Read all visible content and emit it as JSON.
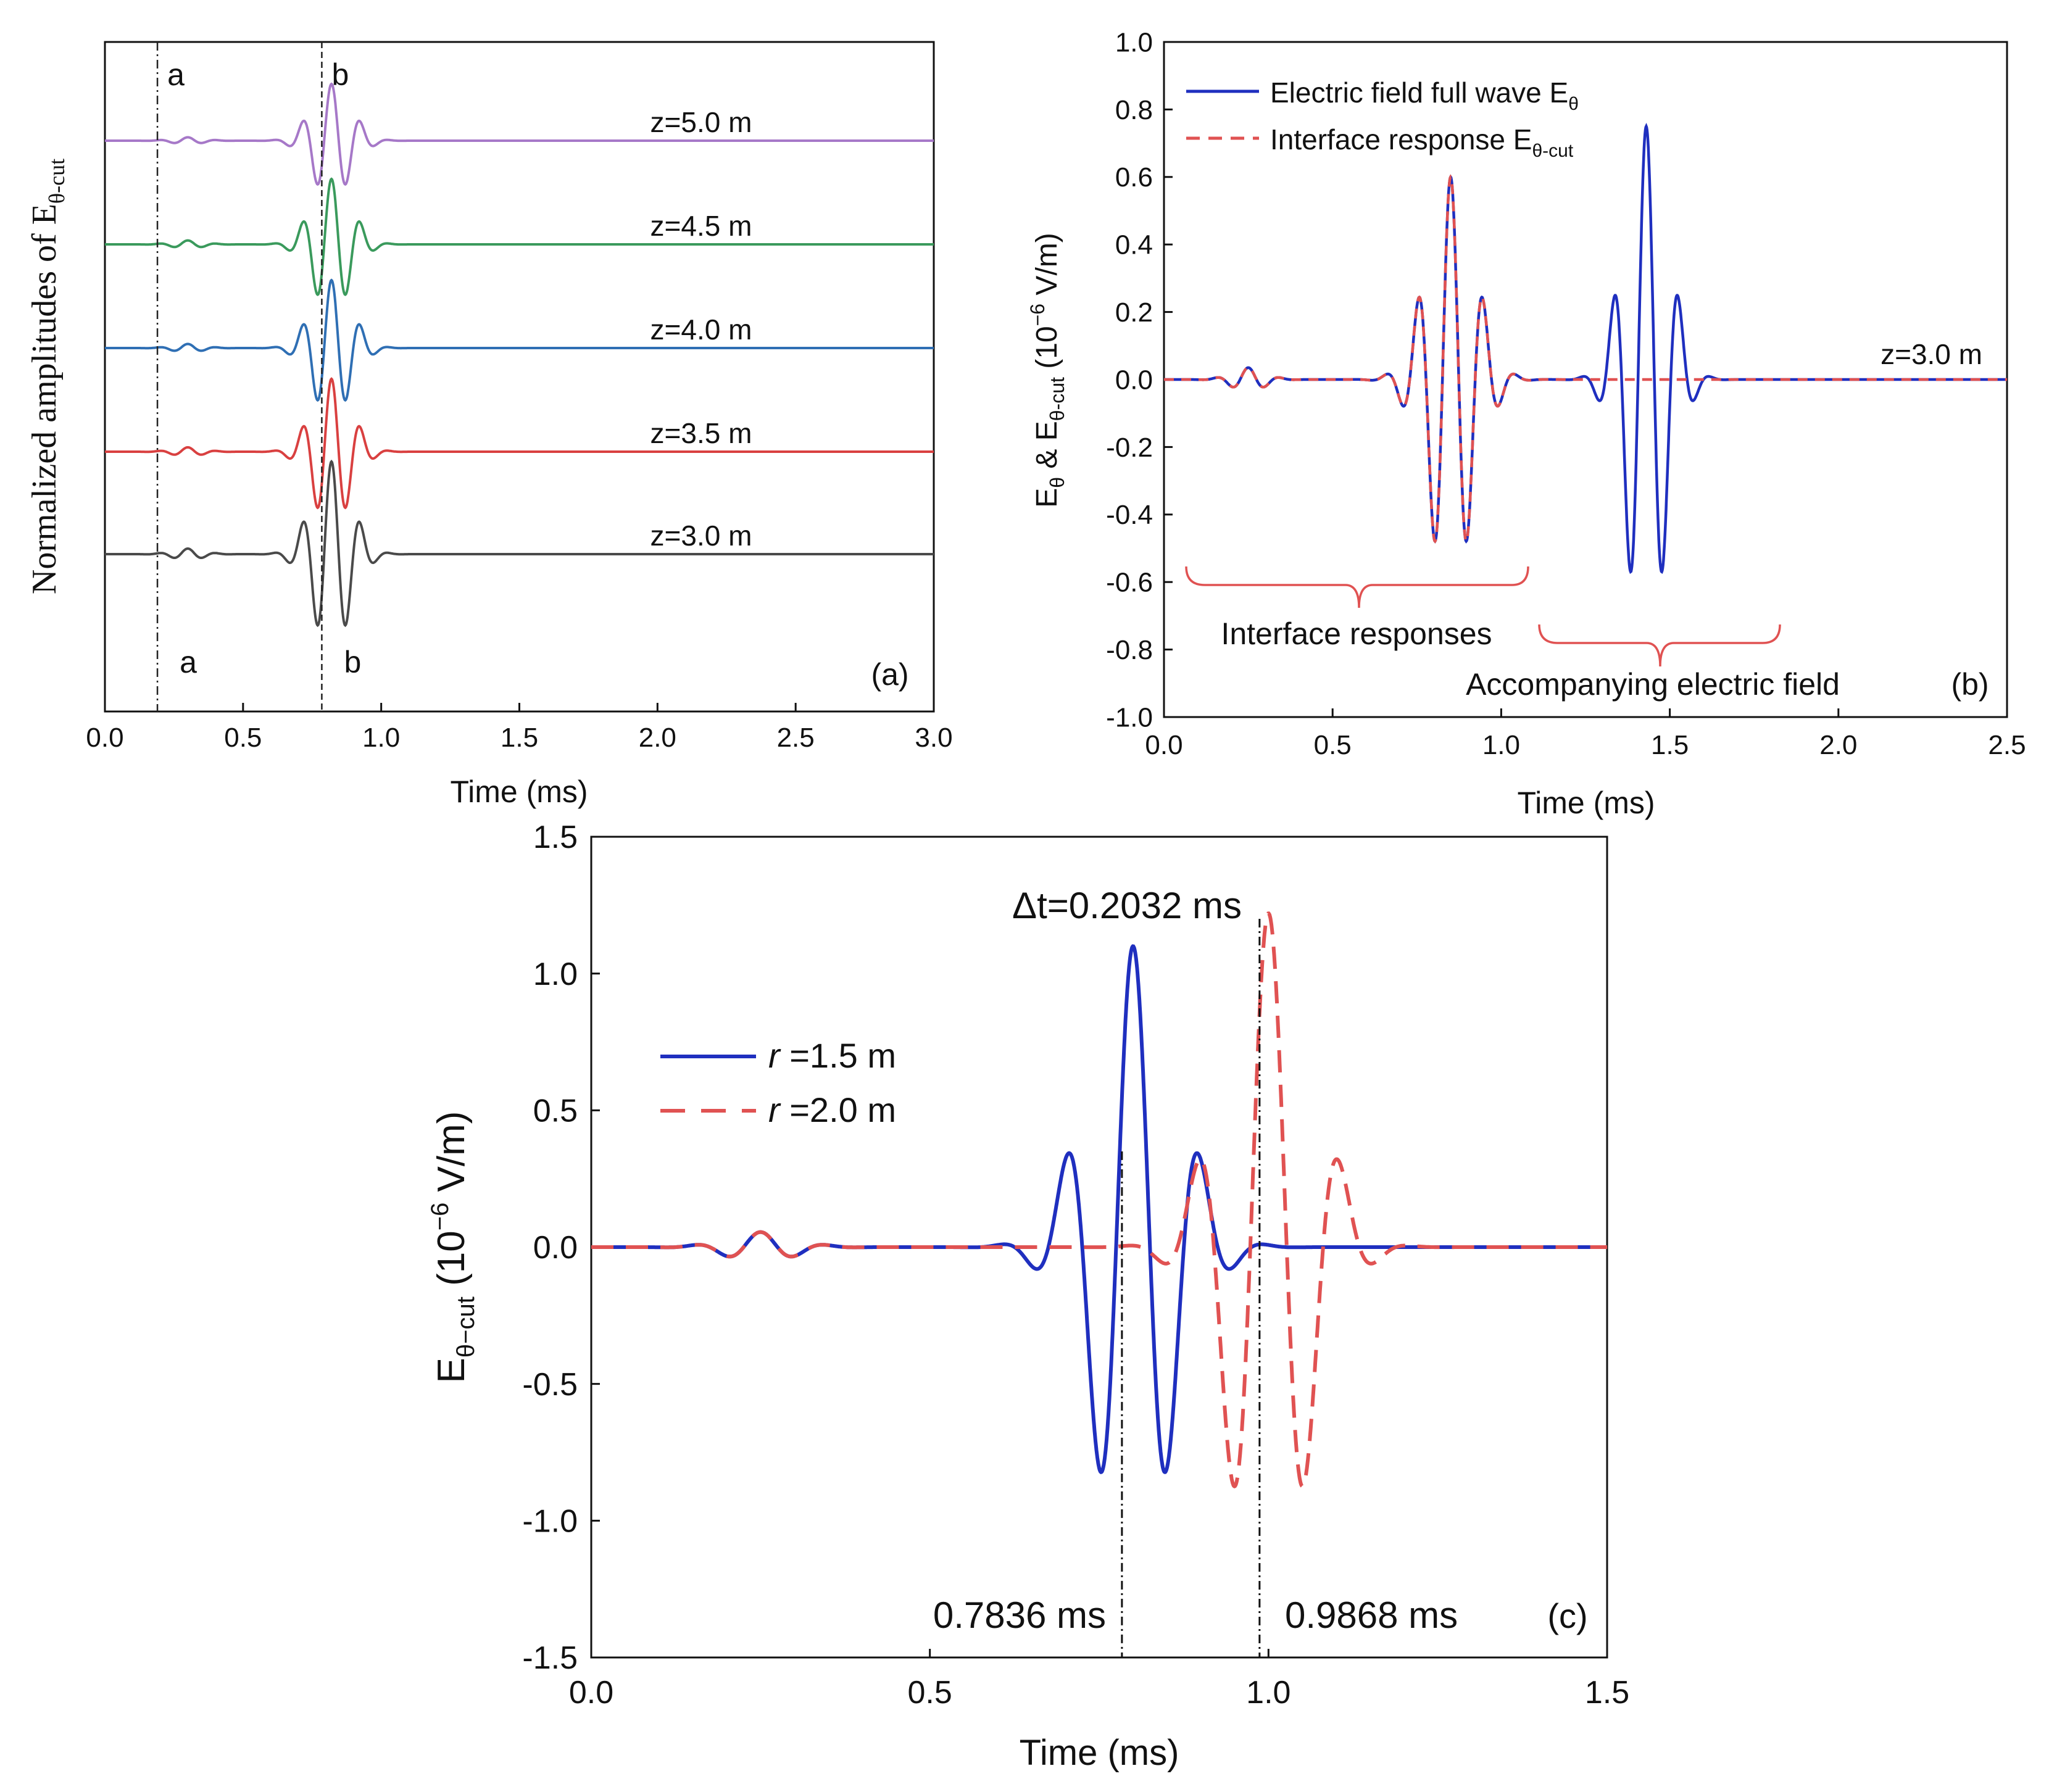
{
  "chart_data": [
    {
      "id": "a",
      "type": "line",
      "panel_label": "(a)",
      "xlabel": "Time (ms)",
      "ylabel_main": "Normalized  amplitudes  of  E",
      "ylabel_sub": "θ-cut",
      "xlim": [
        0.0,
        3.0
      ],
      "x_ticks": [
        "0.0",
        "0.5",
        "1.0",
        "1.5",
        "2.0",
        "2.5",
        "3.0"
      ],
      "markers": [
        {
          "label": "a",
          "time": 0.19
        },
        {
          "label": "b",
          "time": 0.785
        }
      ],
      "series": [
        {
          "name": "z=5.0 m",
          "color": "#a678c8",
          "end_time": 3.0
        },
        {
          "name": "z=4.5 m",
          "color": "#3a9a5c",
          "end_time": 3.0
        },
        {
          "name": "z=4.0 m",
          "color": "#2f6fb4",
          "end_time": 3.0
        },
        {
          "name": "z=3.5 m",
          "color": "#d94040",
          "end_time": 3.0
        },
        {
          "name": "z=3.0 m",
          "color": "#4a4a4a",
          "end_time": 3.0
        }
      ],
      "wave_shape": {
        "precursor_center_ms": 0.3,
        "precursor_amp": 0.06,
        "main_center_ms": 0.82,
        "main_width_ms": 0.1,
        "main_freq_khz": 9.5
      }
    },
    {
      "id": "b",
      "type": "line",
      "panel_label": "(b)",
      "xlabel": "Time (ms)",
      "ylabel_main": "E",
      "ylabel_sub1": "θ",
      "ylabel_mid": " & E",
      "ylabel_sub2": "θ-cut",
      "ylabel_unit_a": "  (10",
      "ylabel_sup": "−6",
      "ylabel_unit_b": " V/m)",
      "xlim": [
        0.0,
        2.5
      ],
      "ylim": [
        -1.0,
        1.0
      ],
      "x_ticks": [
        "0.0",
        "0.5",
        "1.0",
        "1.5",
        "2.0",
        "2.5"
      ],
      "y_ticks": [
        "1.0",
        "0.8",
        "0.6",
        "0.4",
        "0.2",
        "0.0",
        "-0.2",
        "-0.4",
        "-0.6",
        "-0.8",
        "-1.0"
      ],
      "legend": [
        {
          "text": "Electric field full wave E",
          "sub": "θ",
          "color": "#1f2fbf",
          "dash": false
        },
        {
          "text": "Interface response E",
          "sub": "θ-cut",
          "color": "#e05252",
          "dash": true
        }
      ],
      "annotations": {
        "z_label": "z=3.0 m",
        "interface": "Interface responses",
        "accompanying": "Accompanying electric field"
      },
      "series": [
        {
          "name": "Electric field full wave Eθ",
          "color": "#1f2fbf",
          "packets": [
            {
              "center_ms": 0.85,
              "width_ms": 0.1,
              "freq_khz": 10.3,
              "amp": 0.6
            },
            {
              "center_ms": 1.43,
              "width_ms": 0.09,
              "freq_khz": 10.3,
              "amp": 0.75
            },
            {
              "center_ms": 0.25,
              "width_ms": 0.07,
              "freq_khz": 10.3,
              "amp": 0.035
            }
          ]
        },
        {
          "name": "Interface response Eθ-cut",
          "color": "#e05252",
          "packets": [
            {
              "center_ms": 0.85,
              "width_ms": 0.1,
              "freq_khz": 10.3,
              "amp": 0.6
            },
            {
              "center_ms": 0.25,
              "width_ms": 0.07,
              "freq_khz": 10.3,
              "amp": 0.035
            }
          ]
        }
      ]
    },
    {
      "id": "c",
      "type": "line",
      "panel_label": "(c)",
      "xlabel": "Time (ms)",
      "ylabel_main": "E",
      "ylabel_sub": "θ−cut",
      "ylabel_unit_a": " (10",
      "ylabel_sup": "−6",
      "ylabel_unit_b": " V/m)",
      "title": "Δt=0.2032 ms",
      "xlim": [
        0.0,
        1.5
      ],
      "ylim": [
        -1.5,
        1.5
      ],
      "x_ticks": [
        "0.0",
        "0.5",
        "1.0",
        "1.5"
      ],
      "y_ticks": [
        "1.5",
        "1.0",
        "0.5",
        "0.0",
        "-0.5",
        "-1.0",
        "-1.5"
      ],
      "vlines": [
        {
          "time": 0.7836,
          "label": "0.7836 ms"
        },
        {
          "time": 0.9868,
          "label": "0.9868 ms"
        }
      ],
      "legend": [
        {
          "r_symbol": "r",
          "text": " =1.5 m",
          "color": "#1f2fbf",
          "dash": false
        },
        {
          "r_symbol": "r",
          "text": " =2.0 m",
          "color": "#e05252",
          "dash": true
        }
      ],
      "series": [
        {
          "name": "r =1.5 m",
          "color": "#1f2fbf",
          "packets": [
            {
              "center_ms": 0.8,
              "width_ms": 0.09,
              "freq_khz": 10.0,
              "amp": 1.1
            },
            {
              "center_ms": 0.25,
              "width_ms": 0.07,
              "freq_khz": 10.0,
              "amp": 0.055
            }
          ]
        },
        {
          "name": "r =2.0 m",
          "color": "#e05252",
          "packets": [
            {
              "center_ms": 1.0,
              "width_ms": 0.09,
              "freq_khz": 9.3,
              "amp": 1.22
            },
            {
              "center_ms": 0.25,
              "width_ms": 0.07,
              "freq_khz": 10.0,
              "amp": 0.055
            }
          ]
        }
      ]
    }
  ]
}
